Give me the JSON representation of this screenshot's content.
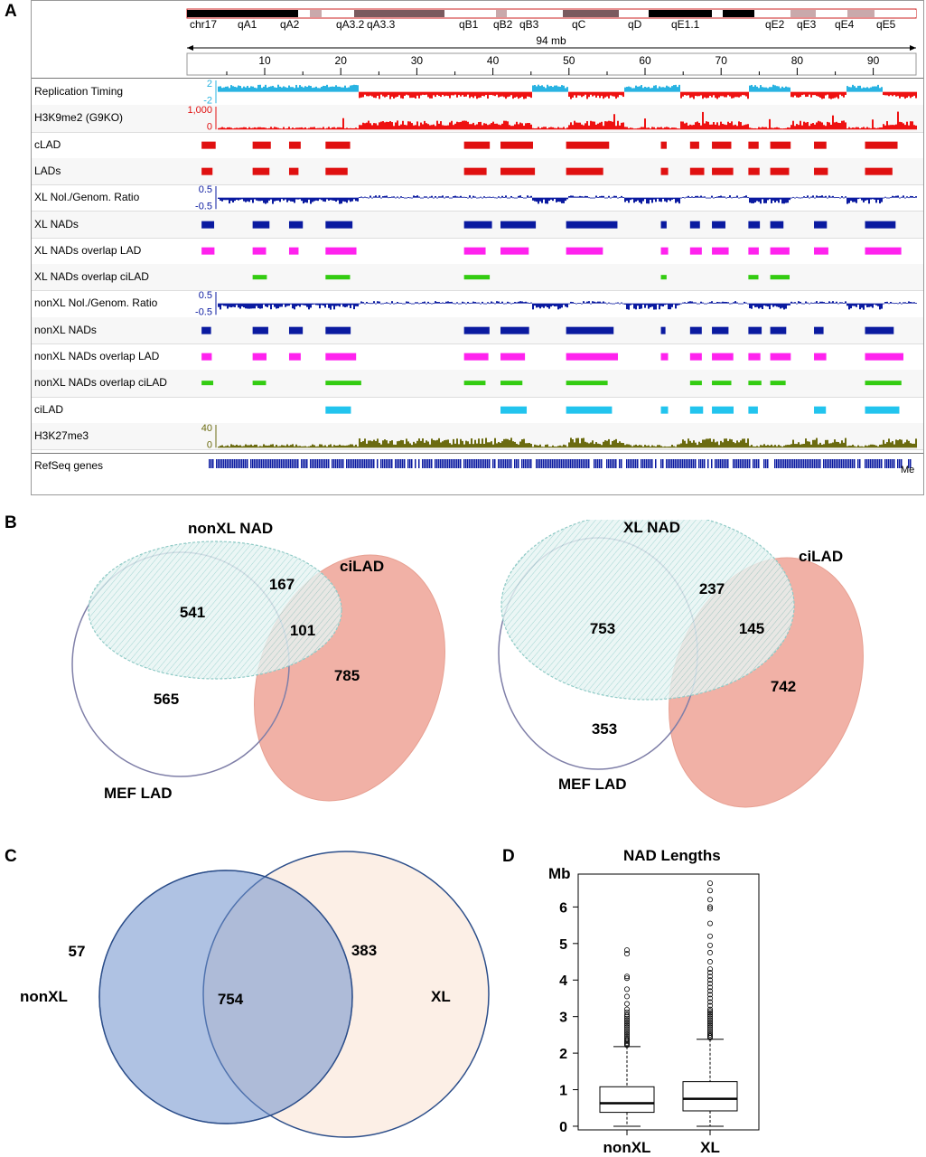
{
  "panels": {
    "a": "A",
    "b": "B",
    "c": "C",
    "d": "D"
  },
  "genome_browser": {
    "chromosome": "chr17",
    "bands": [
      "qA1",
      "qA2",
      "qA3.2",
      "qA3.3",
      "qB1",
      "qB2",
      "qB3",
      "qC",
      "qD",
      "qE1.1",
      "qE2",
      "qE3",
      "qE4",
      "qE5"
    ],
    "scale_label": "94 mb",
    "ruler_ticks": [
      "10",
      "20",
      "30",
      "40",
      "50",
      "60",
      "70",
      "80",
      "90"
    ],
    "tracks": [
      {
        "label": "Replication Timing",
        "scale_top": "2",
        "scale_bottom": "-2",
        "color": "#2ab3e0"
      },
      {
        "label": "H3K9me2 (G9KO)",
        "scale_top": "1,000",
        "scale_bottom": "0",
        "color": "#e01010"
      },
      {
        "label": "cLAD",
        "color": "#e01010"
      },
      {
        "label": "LADs",
        "color": "#e01010"
      },
      {
        "label": "XL Nol./Genom. Ratio",
        "scale_top": "0.5",
        "scale_bottom": "-0.5",
        "color": "#0a1aa0"
      },
      {
        "label": "XL NADs",
        "color": "#0a1aa0"
      },
      {
        "label": "XL NADs overlap LAD",
        "color": "#ff22ee"
      },
      {
        "label": "XL NADs overlap ciLAD",
        "color": "#33cc11"
      },
      {
        "label": "nonXL Nol./Genom. Ratio",
        "scale_top": "0.5",
        "scale_bottom": "-0.5",
        "color": "#0a1aa0"
      },
      {
        "label": "nonXL NADs",
        "color": "#0a1aa0"
      },
      {
        "label": "nonXL NADs overlap LAD",
        "color": "#ff22ee"
      },
      {
        "label": "nonXL NADs overlap ciLAD",
        "color": "#33cc11"
      },
      {
        "label": "ciLAD",
        "color": "#22c4ee"
      },
      {
        "label": "H3K27me3",
        "scale_top": "40",
        "scale_bottom": "0",
        "color": "#6b6b10"
      }
    ],
    "genes_track": {
      "label": "RefSeq genes",
      "end_label": "Me"
    }
  },
  "venn_b_left": {
    "labels": {
      "nad": "nonXL NAD",
      "lad": "MEF LAD",
      "cilad": "ciLAD"
    },
    "values": {
      "nad_lad": "541",
      "nad_only": "167",
      "nad_cilad": "101",
      "lad_only": "565",
      "cilad_only": "785"
    }
  },
  "venn_b_right": {
    "labels": {
      "nad": "XL NAD",
      "lad": "MEF LAD",
      "cilad": "ciLAD"
    },
    "values": {
      "nad_lad": "753",
      "nad_only": "237",
      "nad_cilad": "145",
      "lad_only": "353",
      "cilad_only": "742"
    }
  },
  "venn_c": {
    "labels": {
      "nonxl": "nonXL",
      "xl": "XL"
    },
    "values": {
      "nonxl_only": "57",
      "overlap": "754",
      "xl_only": "383"
    }
  },
  "chart_data": {
    "type": "box",
    "title": "NAD Lengths",
    "ylabel": "Mb",
    "categories": [
      "nonXL",
      "XL"
    ],
    "y_ticks": [
      "0",
      "1",
      "2",
      "3",
      "4",
      "5",
      "6"
    ],
    "ylim": [
      -0.1,
      6.9
    ],
    "series": [
      {
        "name": "nonXL",
        "whisker_low": 0.0,
        "q1": 0.38,
        "median": 0.63,
        "q3": 1.08,
        "whisker_high": 2.18,
        "outliers": [
          2.22,
          2.25,
          2.28,
          2.32,
          2.36,
          2.4,
          2.45,
          2.5,
          2.55,
          2.6,
          2.65,
          2.7,
          2.75,
          2.8,
          2.85,
          2.9,
          2.95,
          3.0,
          3.05,
          3.12,
          3.2,
          3.35,
          3.55,
          3.75,
          4.05,
          4.1,
          4.72,
          4.82
        ]
      },
      {
        "name": "XL",
        "whisker_low": 0.0,
        "q1": 0.42,
        "median": 0.75,
        "q3": 1.22,
        "whisker_high": 2.38,
        "outliers": [
          2.42,
          2.46,
          2.5,
          2.55,
          2.6,
          2.65,
          2.7,
          2.75,
          2.8,
          2.85,
          2.9,
          2.95,
          3.0,
          3.05,
          3.1,
          3.15,
          3.2,
          3.3,
          3.4,
          3.5,
          3.6,
          3.7,
          3.8,
          3.9,
          4.0,
          4.1,
          4.2,
          4.3,
          4.5,
          4.75,
          4.95,
          5.2,
          5.55,
          5.95,
          6.0,
          6.2,
          6.45,
          6.65
        ]
      }
    ]
  }
}
